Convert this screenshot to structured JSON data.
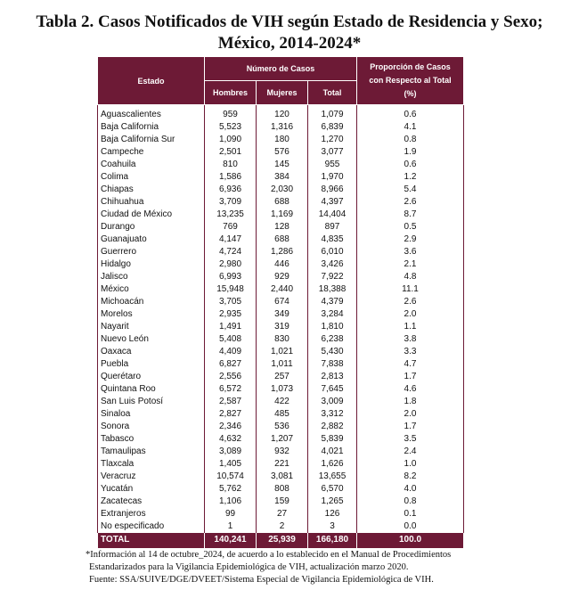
{
  "title": [
    "Tabla 2. Casos Notificados de VIH según Estado de Residencia y Sexo;",
    "México, 2014-2024*"
  ],
  "table": {
    "header": {
      "estado": "Estado",
      "numero": "Número de Casos",
      "hombres": "Hombres",
      "mujeres": "Mujeres",
      "total": "Total",
      "proporcion": "Proporción de Casos con Respecto al Total (%)"
    },
    "rows": [
      [
        "Aguascalientes",
        "959",
        "120",
        "1,079",
        "0.6"
      ],
      [
        "Baja California",
        "5,523",
        "1,316",
        "6,839",
        "4.1"
      ],
      [
        "Baja California Sur",
        "1,090",
        "180",
        "1,270",
        "0.8"
      ],
      [
        "Campeche",
        "2,501",
        "576",
        "3,077",
        "1.9"
      ],
      [
        "Coahuila",
        "810",
        "145",
        "955",
        "0.6"
      ],
      [
        "Colima",
        "1,586",
        "384",
        "1,970",
        "1.2"
      ],
      [
        "Chiapas",
        "6,936",
        "2,030",
        "8,966",
        "5.4"
      ],
      [
        "Chihuahua",
        "3,709",
        "688",
        "4,397",
        "2.6"
      ],
      [
        "Ciudad de México",
        "13,235",
        "1,169",
        "14,404",
        "8.7"
      ],
      [
        "Durango",
        "769",
        "128",
        "897",
        "0.5"
      ],
      [
        "Guanajuato",
        "4,147",
        "688",
        "4,835",
        "2.9"
      ],
      [
        "Guerrero",
        "4,724",
        "1,286",
        "6,010",
        "3.6"
      ],
      [
        "Hidalgo",
        "2,980",
        "446",
        "3,426",
        "2.1"
      ],
      [
        "Jalisco",
        "6,993",
        "929",
        "7,922",
        "4.8"
      ],
      [
        "México",
        "15,948",
        "2,440",
        "18,388",
        "11.1"
      ],
      [
        "Michoacán",
        "3,705",
        "674",
        "4,379",
        "2.6"
      ],
      [
        "Morelos",
        "2,935",
        "349",
        "3,284",
        "2.0"
      ],
      [
        "Nayarit",
        "1,491",
        "319",
        "1,810",
        "1.1"
      ],
      [
        "Nuevo León",
        "5,408",
        "830",
        "6,238",
        "3.8"
      ],
      [
        "Oaxaca",
        "4,409",
        "1,021",
        "5,430",
        "3.3"
      ],
      [
        "Puebla",
        "6,827",
        "1,011",
        "7,838",
        "4.7"
      ],
      [
        "Querétaro",
        "2,556",
        "257",
        "2,813",
        "1.7"
      ],
      [
        "Quintana Roo",
        "6,572",
        "1,073",
        "7,645",
        "4.6"
      ],
      [
        "San Luis Potosí",
        "2,587",
        "422",
        "3,009",
        "1.8"
      ],
      [
        "Sinaloa",
        "2,827",
        "485",
        "3,312",
        "2.0"
      ],
      [
        "Sonora",
        "2,346",
        "536",
        "2,882",
        "1.7"
      ],
      [
        "Tabasco",
        "4,632",
        "1,207",
        "5,839",
        "3.5"
      ],
      [
        "Tamaulipas",
        "3,089",
        "932",
        "4,021",
        "2.4"
      ],
      [
        "Tlaxcala",
        "1,405",
        "221",
        "1,626",
        "1.0"
      ],
      [
        "Veracruz",
        "10,574",
        "3,081",
        "13,655",
        "8.2"
      ],
      [
        "Yucatán",
        "5,762",
        "808",
        "6,570",
        "4.0"
      ],
      [
        "Zacatecas",
        "1,106",
        "159",
        "1,265",
        "0.8"
      ],
      [
        "Extranjeros",
        "99",
        "27",
        "126",
        "0.1"
      ],
      [
        "No especificado",
        "1",
        "2",
        "3",
        "0.0"
      ]
    ],
    "total": [
      "TOTAL",
      "140,241",
      "25,939",
      "166,180",
      "100.0"
    ]
  },
  "footnotes": [
    "*Información al 14 de octubre_2024, de acuerdo a lo establecido en el Manual de Procedimientos",
    "Estandarizados para la Vigilancia Epidemiológica de VIH, actualización marzo 2020.",
    "Fuente: SSA/SUIVE/DGE/DVEET/Sistema Especial de Vigilancia Epidemiológica de VIH."
  ]
}
